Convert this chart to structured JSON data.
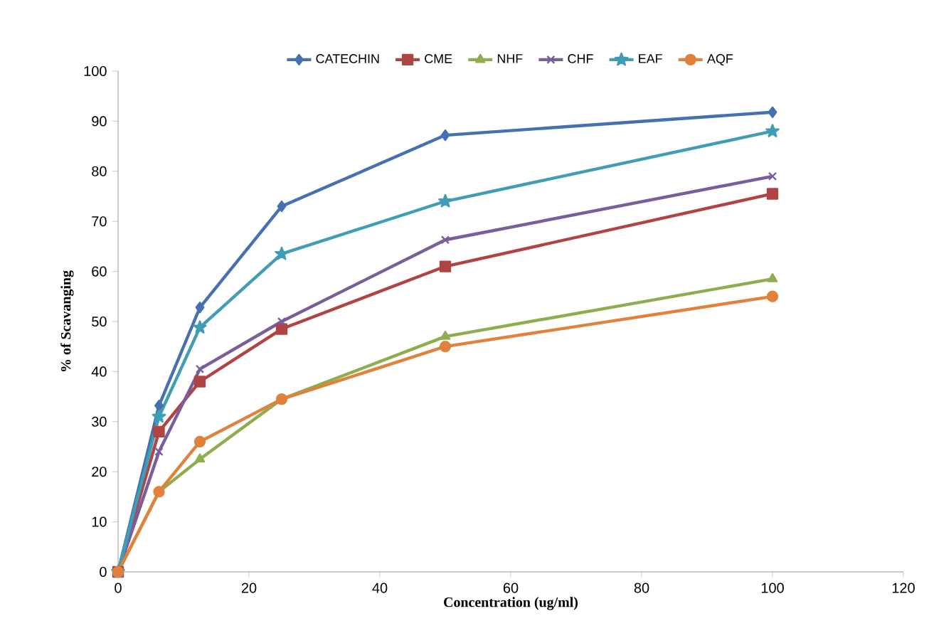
{
  "chart_data": {
    "type": "line",
    "xlabel": "Concentration (ug/ml)",
    "ylabel": "% of Scavanging",
    "x": [
      0,
      6.25,
      12.5,
      25,
      50,
      100
    ],
    "series": [
      {
        "name": "CATECHIN",
        "color": "#4571b0",
        "marker": "diamond",
        "values": [
          0,
          33.2,
          52.8,
          73,
          87.2,
          91.8
        ]
      },
      {
        "name": "CME",
        "color": "#b04442",
        "marker": "square",
        "values": [
          0,
          28,
          38,
          48.5,
          61,
          75.5
        ]
      },
      {
        "name": "NHF",
        "color": "#8eae4d",
        "marker": "triangle",
        "values": [
          0,
          16,
          22.5,
          34.5,
          47,
          58.5
        ]
      },
      {
        "name": "CHF",
        "color": "#7a5d9c",
        "marker": "cross",
        "values": [
          0,
          24,
          40.5,
          50,
          66.3,
          79
        ]
      },
      {
        "name": "EAF",
        "color": "#3f9db6",
        "marker": "star",
        "values": [
          0,
          31,
          48.8,
          63.5,
          74,
          88
        ]
      },
      {
        "name": "AQF",
        "color": "#e0823c",
        "marker": "circle",
        "values": [
          0,
          16,
          26,
          34.5,
          45,
          55
        ]
      }
    ],
    "xlim": [
      0,
      120
    ],
    "xticks": [
      0,
      20,
      40,
      60,
      80,
      100,
      120
    ],
    "ylim": [
      0,
      100
    ],
    "yticks": [
      0,
      10,
      20,
      30,
      40,
      50,
      60,
      70,
      80,
      90,
      100
    ],
    "grid": false,
    "legend": "top",
    "line_style": "solid"
  }
}
